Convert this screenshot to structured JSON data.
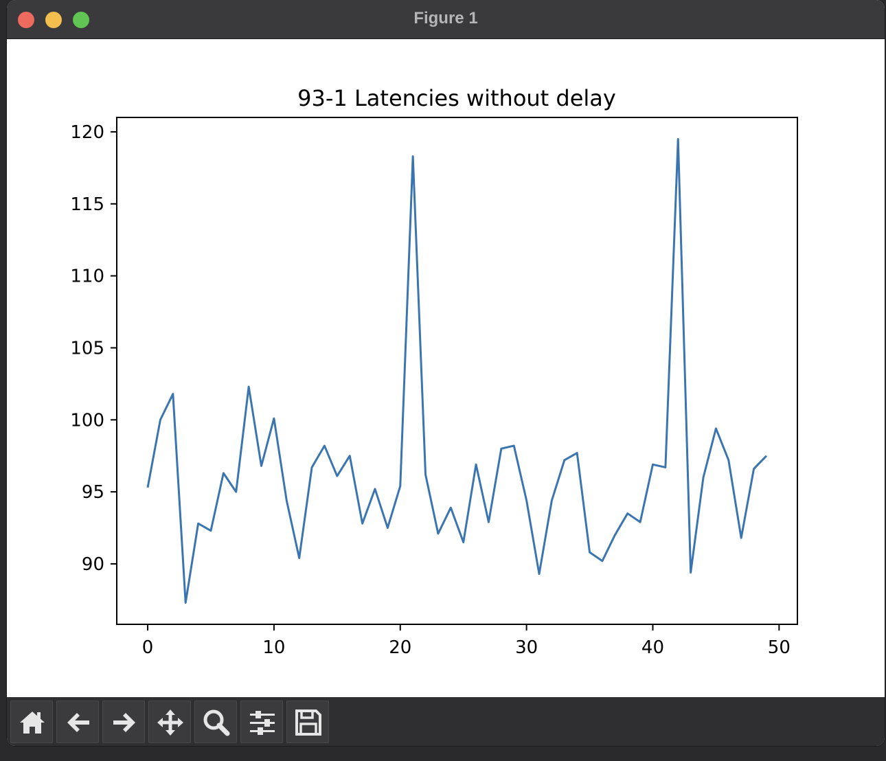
{
  "window": {
    "title": "Figure 1"
  },
  "toolbar": {
    "buttons": [
      {
        "icon": "home-icon",
        "action": "home"
      },
      {
        "icon": "arrow-left-icon",
        "action": "back"
      },
      {
        "icon": "arrow-right-icon",
        "action": "forward"
      },
      {
        "icon": "move-icon",
        "action": "pan"
      },
      {
        "icon": "search-icon",
        "action": "zoom"
      },
      {
        "icon": "sliders-icon",
        "action": "configure-subplots"
      },
      {
        "icon": "save-icon",
        "action": "save"
      }
    ]
  },
  "colors": {
    "line": "#3b75af",
    "axes": "#000000",
    "toolbar": "#2f2f31"
  },
  "chart_data": {
    "type": "line",
    "title": "93-1 Latencies without delay",
    "xlabel": "",
    "ylabel": "",
    "xlim": [
      -2.45,
      51.45
    ],
    "ylim": [
      85.8,
      121.0
    ],
    "xticks": [
      0,
      10,
      20,
      30,
      40,
      50
    ],
    "yticks": [
      90,
      95,
      100,
      105,
      110,
      115,
      120
    ],
    "grid": false,
    "series": [
      {
        "x": [
          0,
          1,
          2,
          3,
          4,
          5,
          6,
          7,
          8,
          9,
          10,
          11,
          12,
          13,
          14,
          15,
          16,
          17,
          18,
          19,
          20,
          21,
          22,
          23,
          24,
          25,
          26,
          27,
          28,
          29,
          30,
          31,
          32,
          33,
          34,
          35,
          36,
          37,
          38,
          39,
          40,
          41,
          42,
          43,
          44,
          45,
          46,
          47,
          48,
          49
        ],
        "values": [
          95.3,
          100.0,
          101.8,
          87.3,
          92.8,
          92.3,
          96.3,
          95.0,
          102.3,
          96.8,
          100.1,
          94.4,
          90.4,
          96.7,
          98.2,
          96.1,
          97.5,
          92.8,
          95.2,
          92.5,
          95.4,
          118.3,
          96.2,
          92.1,
          93.9,
          91.5,
          96.9,
          92.9,
          98.0,
          98.2,
          94.4,
          89.3,
          94.4,
          97.2,
          97.7,
          90.8,
          90.2,
          92.0,
          93.5,
          92.9,
          96.9,
          96.7,
          119.5,
          89.4,
          96.0,
          99.4,
          97.2,
          91.8,
          96.6,
          97.5
        ]
      }
    ]
  }
}
